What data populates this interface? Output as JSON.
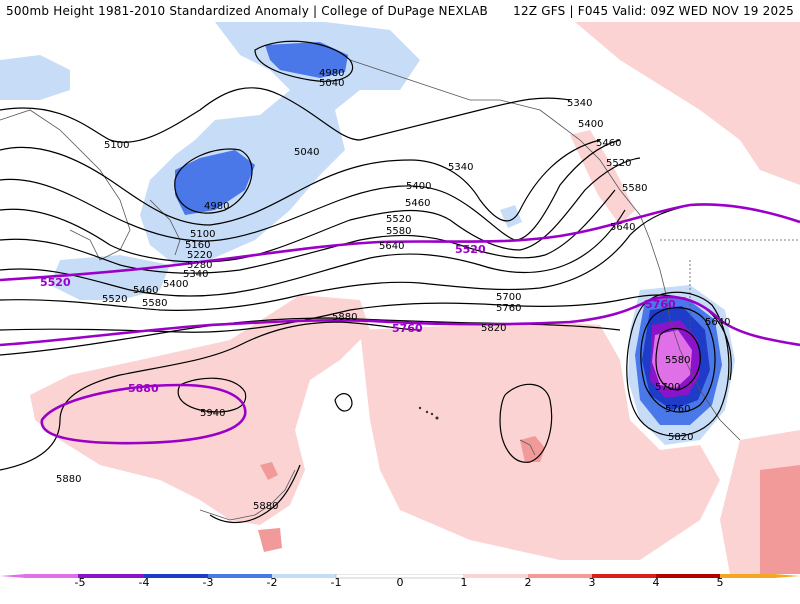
{
  "header": {
    "left_title": "500mb Height 1981-2010 Standardized Anomaly | College of DuPage NEXLAB",
    "right_title": "12Z GFS | F045 Valid: 09Z WED NOV 19 2025"
  },
  "colors": {
    "neg5": "#e070e8",
    "neg4": "#8b14c8",
    "neg3": "#1e3cc8",
    "neg2": "#4a78e8",
    "neg1": "#c7dcf7",
    "pos1": "#fbd3d3",
    "pos2": "#f29a9a",
    "pos3": "#d62020",
    "pos4": "#b00000",
    "pos5": "#f5a623",
    "highlight_contour": "#9b00c8"
  },
  "contour_labels": [
    "5100",
    "5040",
    "4980",
    "5040",
    "4980",
    "5100",
    "5160",
    "5220",
    "5280",
    "5340",
    "5400",
    "5460",
    "5520",
    "5580",
    "5340",
    "5400",
    "5460",
    "5520",
    "5580",
    "5640",
    "5700",
    "5760",
    "5820",
    "5340",
    "5400",
    "5460",
    "5520",
    "5580",
    "5640",
    "5640",
    "5580",
    "5700",
    "5760",
    "5820",
    "5880",
    "5940",
    "5880",
    "5880"
  ],
  "highlight_labels": [
    "5520",
    "5520",
    "5760",
    "5760",
    "5880"
  ],
  "colorbar": {
    "ticks": [
      "-5",
      "-4",
      "-3",
      "-2",
      "-1",
      "0",
      "1",
      "2",
      "3",
      "4",
      "5"
    ]
  }
}
